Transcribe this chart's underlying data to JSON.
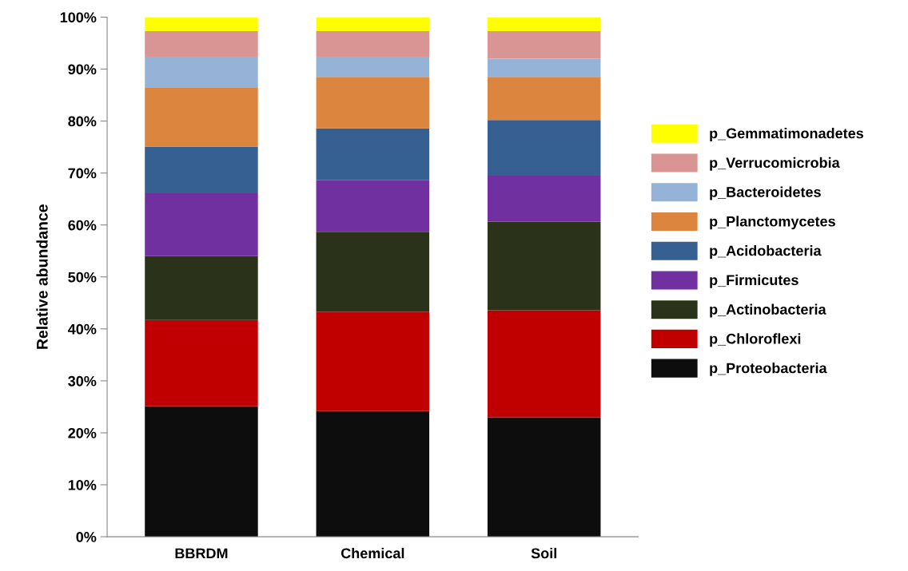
{
  "chart_data": {
    "type": "bar",
    "stacked": true,
    "ylabel": "Relative abundance",
    "categories": [
      "BBRDM",
      "Chemical",
      "Soil"
    ],
    "series": [
      {
        "name": "p_Proteobacteria",
        "color": "#0d0d0d",
        "values": [
          25.1,
          24.2,
          23.0
        ]
      },
      {
        "name": "p_Chloroflexi",
        "color": "#c00000",
        "values": [
          16.6,
          19.1,
          20.6
        ]
      },
      {
        "name": "p_Actinobacteria",
        "color": "#2a3319",
        "values": [
          12.3,
          15.4,
          17.0
        ]
      },
      {
        "name": "p_Firmicutes",
        "color": "#7030a0",
        "values": [
          12.1,
          9.9,
          8.9
        ]
      },
      {
        "name": "p_Acidobacteria",
        "color": "#366092",
        "values": [
          9.0,
          10.0,
          10.7
        ]
      },
      {
        "name": "p_Planctomycetes",
        "color": "#dc853e",
        "values": [
          11.4,
          9.9,
          8.3
        ]
      },
      {
        "name": "p_Bacteroidetes",
        "color": "#95b3d7",
        "values": [
          5.9,
          3.9,
          3.5
        ]
      },
      {
        "name": "p_Verrucomicrobia",
        "color": "#d99594",
        "values": [
          4.9,
          4.9,
          5.3
        ]
      },
      {
        "name": "p_Gemmatimonadetes",
        "color": "#ffff00",
        "values": [
          2.7,
          2.7,
          2.7
        ]
      }
    ],
    "ylim": [
      0,
      100
    ],
    "yticks": [
      {
        "value": 0,
        "label": "0%"
      },
      {
        "value": 10,
        "label": "10%"
      },
      {
        "value": 20,
        "label": "20%"
      },
      {
        "value": 30,
        "label": "30%"
      },
      {
        "value": 40,
        "label": "40%"
      },
      {
        "value": 50,
        "label": "50%"
      },
      {
        "value": 60,
        "label": "60%"
      },
      {
        "value": 70,
        "label": "70%"
      },
      {
        "value": 80,
        "label": "80%"
      },
      {
        "value": 90,
        "label": "90%"
      },
      {
        "value": 100,
        "label": "100%"
      }
    ],
    "legend": "right"
  }
}
